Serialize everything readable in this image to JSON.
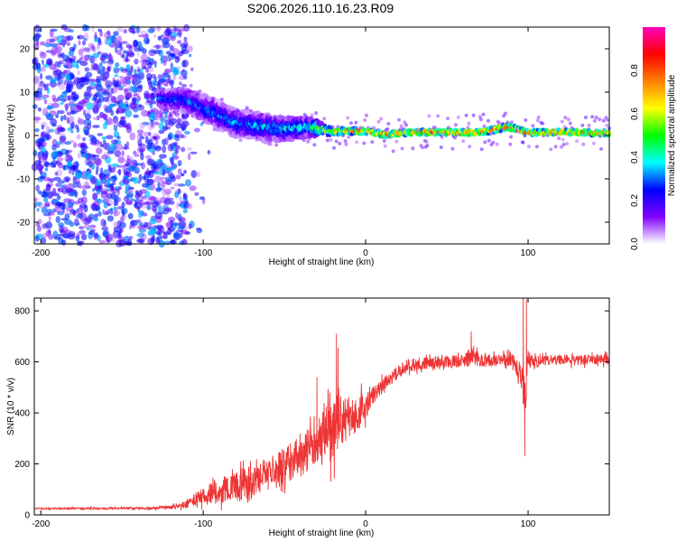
{
  "title": "S206.2026.110.16.23.R09",
  "chart_data": [
    {
      "type": "heatmap",
      "xlabel": "Height of straight line (km)",
      "ylabel": "Frequency (Hz)",
      "xlim": [
        -204,
        150
      ],
      "ylim": [
        -25,
        25
      ],
      "xticks": [
        -200,
        -100,
        0,
        100
      ],
      "yticks": [
        -20,
        -10,
        0,
        10,
        20
      ],
      "grid": false,
      "colorbar": {
        "label": "Normalized spectral amplitude",
        "range": [
          0.0,
          1.0
        ],
        "ticks": [
          "0.0",
          "0.2",
          "0.4",
          "0.6",
          "0.8"
        ],
        "colormap": [
          "#ffffff",
          "#8000ff",
          "#0000ff",
          "#00ffff",
          "#00ff00",
          "#ffff00",
          "#ff8000",
          "#ff0000",
          "#ff00c0"
        ]
      },
      "ridge": [
        {
          "x": -127,
          "f": 8.5,
          "spread": 1.5,
          "amp": 0.34
        },
        {
          "x": -110,
          "f": 8.2,
          "spread": 2.5,
          "amp": 0.33
        },
        {
          "x": -95,
          "f": 5.5,
          "spread": 3.0,
          "amp": 0.32
        },
        {
          "x": -80,
          "f": 3.0,
          "spread": 3.0,
          "amp": 0.35
        },
        {
          "x": -65,
          "f": 2.0,
          "spread": 3.0,
          "amp": 0.38
        },
        {
          "x": -50,
          "f": 1.5,
          "spread": 2.5,
          "amp": 0.42
        },
        {
          "x": -35,
          "f": 2.0,
          "spread": 2.0,
          "amp": 0.45
        },
        {
          "x": -22,
          "f": 1.0,
          "spread": 0.9,
          "amp": 0.72
        },
        {
          "x": -10,
          "f": 1.0,
          "spread": 0.7,
          "amp": 0.82
        },
        {
          "x": 0,
          "f": 1.0,
          "spread": 0.6,
          "amp": 0.88
        },
        {
          "x": 12,
          "f": 0.2,
          "spread": 0.6,
          "amp": 0.84
        },
        {
          "x": 30,
          "f": 0.8,
          "spread": 0.6,
          "amp": 0.86
        },
        {
          "x": 50,
          "f": 0.7,
          "spread": 0.6,
          "amp": 0.9
        },
        {
          "x": 70,
          "f": 0.7,
          "spread": 0.6,
          "amp": 0.86
        },
        {
          "x": 88,
          "f": 2.0,
          "spread": 0.7,
          "amp": 0.92
        },
        {
          "x": 100,
          "f": 0.6,
          "spread": 0.6,
          "amp": 0.86
        },
        {
          "x": 120,
          "f": 0.8,
          "spread": 0.6,
          "amp": 0.86
        },
        {
          "x": 150,
          "f": 0.5,
          "spread": 0.6,
          "amp": 0.82
        }
      ],
      "noise_floor_region": {
        "x": [
          -204,
          -110
        ],
        "f": [
          -25,
          25
        ],
        "amp": 0.3
      }
    },
    {
      "type": "line",
      "xlabel": "Height of straight line (km)",
      "ylabel": "SNR (10 * v/v)",
      "xlim": [
        -204,
        150
      ],
      "ylim": [
        0,
        850
      ],
      "xticks": [
        -200,
        -100,
        0,
        100
      ],
      "yticks": [
        0,
        200,
        400,
        600,
        800
      ],
      "grid": false,
      "series": [
        {
          "color": "#ee3333",
          "x": [
            -204,
            -190,
            -170,
            -150,
            -130,
            -120,
            -110,
            -100,
            -90,
            -80,
            -70,
            -60,
            -50,
            -40,
            -30,
            -25,
            -20,
            -15,
            -10,
            -5,
            0,
            5,
            10,
            15,
            20,
            25,
            30,
            40,
            50,
            60,
            65,
            70,
            80,
            90,
            95,
            98,
            100,
            102,
            110,
            120,
            130,
            140,
            150
          ],
          "y": [
            25,
            25,
            25,
            26,
            27,
            30,
            40,
            75,
            95,
            110,
            130,
            160,
            190,
            240,
            280,
            310,
            330,
            370,
            390,
            400,
            430,
            470,
            505,
            535,
            560,
            580,
            590,
            598,
            600,
            603,
            620,
            605,
            605,
            610,
            560,
            450,
            610,
            600,
            605,
            610,
            605,
            610,
            610
          ],
          "noise": [
            2,
            3,
            4,
            4,
            5,
            8,
            15,
            35,
            50,
            60,
            65,
            65,
            75,
            80,
            85,
            110,
            130,
            100,
            85,
            75,
            55,
            35,
            30,
            25,
            25,
            25,
            25,
            25,
            25,
            25,
            40,
            25,
            25,
            25,
            40,
            120,
            40,
            25,
            20,
            20,
            20,
            20,
            20
          ],
          "peaks": [
            {
              "x": -18,
              "y": 710
            },
            {
              "x": -17,
              "y": 655
            },
            {
              "x": -30,
              "y": 540
            },
            {
              "x": 65,
              "y": 720
            },
            {
              "x": 97,
              "y": 850
            },
            {
              "x": 98,
              "y": 230
            },
            {
              "x": 99,
              "y": 845
            }
          ]
        }
      ]
    }
  ]
}
